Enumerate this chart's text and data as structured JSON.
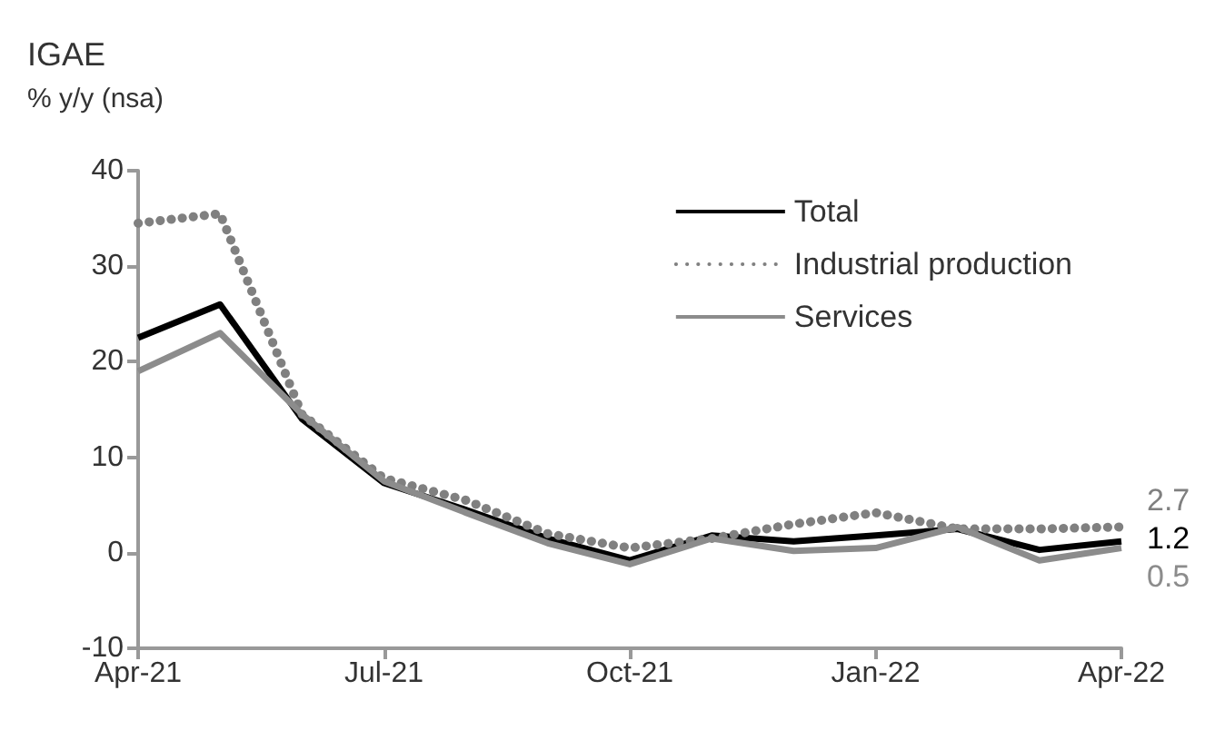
{
  "chart_data": {
    "type": "line",
    "title": "IGAE",
    "subtitle": "% y/y (nsa)",
    "categories": [
      "Apr-21",
      null,
      null,
      "Jul-21",
      null,
      null,
      "Oct-21",
      null,
      null,
      "Jan-22",
      null,
      null,
      "Apr-22"
    ],
    "series": [
      {
        "name": "Total",
        "color": "#000000",
        "line_style": "solid",
        "values": [
          22.5,
          26,
          14,
          7.3,
          4.5,
          1.5,
          -0.8,
          1.8,
          1.2,
          1.8,
          2.5,
          0.3,
          1.2
        ],
        "value_labels": [
          null,
          null,
          null,
          null,
          null,
          null,
          null,
          null,
          null,
          null,
          null,
          null,
          "1.2"
        ]
      },
      {
        "name": "Industrial production",
        "color": "#808080",
        "line_style": "dotted",
        "values": [
          34.5,
          35.5,
          14.5,
          7.8,
          5.5,
          2,
          0.5,
          1.5,
          3,
          4.2,
          2.5,
          2.5,
          2.7
        ],
        "value_labels": [
          null,
          null,
          null,
          null,
          null,
          null,
          null,
          null,
          null,
          null,
          null,
          null,
          "2.7"
        ]
      },
      {
        "name": "Services",
        "color": "#8c8c8c",
        "line_style": "solid",
        "values": [
          19,
          23,
          14.5,
          7.5,
          4.2,
          1,
          -1.2,
          1.5,
          0.2,
          0.5,
          2.7,
          -0.8,
          0.5
        ],
        "value_labels": [
          null,
          null,
          null,
          null,
          null,
          null,
          null,
          null,
          null,
          null,
          null,
          null,
          "0.5"
        ]
      }
    ],
    "ylim": [
      -10,
      40
    ],
    "yticks": [
      -10,
      0,
      10,
      20,
      30,
      40
    ],
    "grid": false,
    "legend": "top right",
    "marker": "none"
  }
}
